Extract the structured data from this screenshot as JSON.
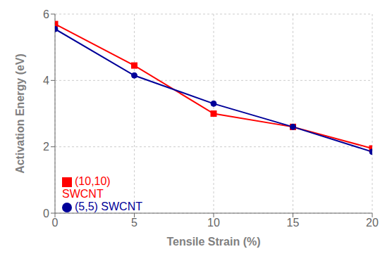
{
  "chart_data": {
    "type": "line",
    "xlabel": "Tensile Strain (%)",
    "ylabel": "Activation Energy (eV)",
    "x": [
      0,
      5,
      10,
      15,
      20
    ],
    "series": [
      {
        "name": "(10,10) SWCNT",
        "color": "#FF0000",
        "marker": "square",
        "values": [
          5.7,
          4.45,
          3.0,
          2.6,
          1.95
        ]
      },
      {
        "name": "(5,5) SWCNT",
        "color": "#000099",
        "marker": "circle",
        "values": [
          5.55,
          4.15,
          3.3,
          2.6,
          1.85
        ]
      }
    ],
    "xlim": [
      0,
      20
    ],
    "ylim": [
      0,
      6
    ],
    "xticks": [
      0,
      5,
      10,
      15,
      20
    ],
    "yticks": [
      0,
      2,
      4,
      6
    ],
    "grid": true,
    "legend": "lower left"
  }
}
